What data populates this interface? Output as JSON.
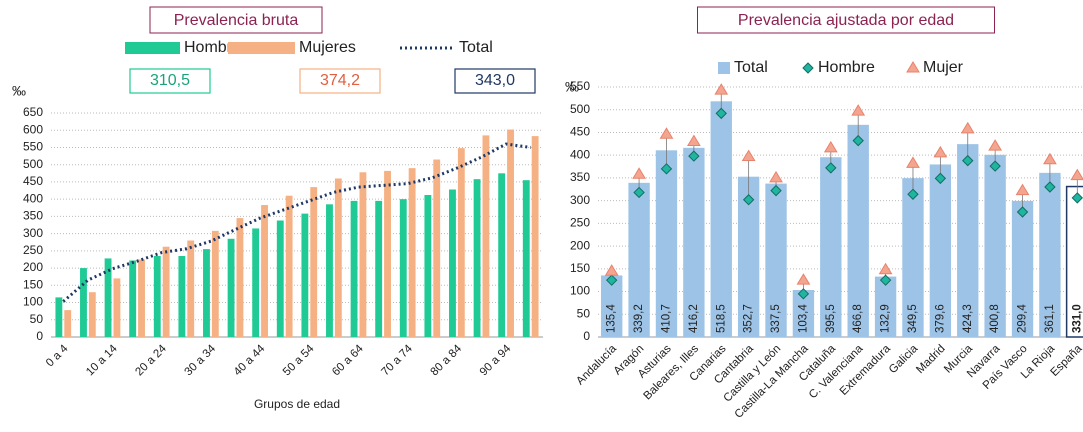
{
  "chart_data": [
    {
      "type": "bar",
      "title": "Prevalencia bruta",
      "unit": "‰",
      "xlabel": "Grupos de edad",
      "categories": [
        "0 a 4",
        null,
        "10 a 14",
        null,
        "20 a 24",
        null,
        "30 a 34",
        null,
        "40 a 44",
        null,
        "50 a 54",
        null,
        "60 a 64",
        null,
        "70 a 74",
        null,
        "80 a 84",
        null,
        "90 a 94",
        null
      ],
      "series": [
        {
          "name": "Hombres",
          "type": "bar",
          "color": "#1fca94",
          "summary": "310,5",
          "values": [
            115,
            200,
            228,
            222,
            235,
            235,
            255,
            285,
            315,
            338,
            358,
            385,
            395,
            395,
            400,
            412,
            428,
            458,
            475,
            455
          ]
        },
        {
          "name": "Mujeres",
          "type": "bar",
          "color": "#f5b183",
          "summary": "374,2",
          "values": [
            78,
            130,
            170,
            225,
            262,
            280,
            308,
            345,
            383,
            410,
            435,
            460,
            478,
            482,
            490,
            515,
            548,
            585,
            602,
            583
          ]
        },
        {
          "name": "Total",
          "type": "line",
          "color": "#1f3864",
          "summary": "343,0",
          "values": [
            103,
            165,
            198,
            220,
            245,
            256,
            278,
            312,
            345,
            370,
            395,
            420,
            435,
            440,
            445,
            462,
            490,
            522,
            560,
            550
          ]
        }
      ],
      "ylim": [
        0,
        650
      ],
      "yticks": [
        0,
        50,
        100,
        150,
        200,
        250,
        300,
        350,
        400,
        450,
        500,
        550,
        600,
        650
      ],
      "grid": true
    },
    {
      "type": "bar",
      "title": "Prevalencia ajustada por edad",
      "unit": "‰",
      "categories": [
        "Andalucía",
        "Aragón",
        "Asturias",
        "Baleares, Illes",
        "Canarias",
        "Cantabria",
        "Castilla y León",
        "Castilla-La Mancha",
        "Cataluña",
        "C. Valenciana",
        "Extremadura",
        "Galicia",
        "Madrid",
        "Murcia",
        "Navarra",
        "País Vasco",
        "La Rioja",
        "España"
      ],
      "series": [
        {
          "name": "Total",
          "type": "bar",
          "color": "#9dc3e6",
          "values": [
            135.4,
            339.2,
            410.7,
            416.2,
            518.5,
            352.7,
            337.5,
            103.4,
            395.5,
            466.8,
            132.9,
            349.5,
            379.6,
            424.3,
            400.8,
            299.4,
            361.1,
            331.0
          ],
          "value_labels": [
            "135,4",
            "339,2",
            "410,7",
            "416,2",
            "518,5",
            "352,7",
            "337,5",
            "103,4",
            "395,5",
            "466,8",
            "132,9",
            "349,5",
            "379,6",
            "424,3",
            "400,8",
            "299,4",
            "361,1",
            "331,0"
          ]
        },
        {
          "name": "Hombre",
          "type": "scatter",
          "marker": "diamond",
          "color": "#1fb5a0",
          "values": [
            125,
            318,
            370,
            398,
            492,
            302,
            322,
            95,
            372,
            432,
            125,
            314,
            349,
            388,
            376,
            275,
            330,
            306
          ]
        },
        {
          "name": "Mujer",
          "type": "scatter",
          "marker": "triangle",
          "color": "#f4a58f",
          "values": [
            145,
            358,
            446,
            430,
            543,
            397,
            350,
            125,
            416,
            497,
            148,
            382,
            405,
            458,
            420,
            322,
            390,
            355
          ]
        }
      ],
      "ylim": [
        0,
        550
      ],
      "yticks": [
        0,
        50,
        100,
        150,
        200,
        250,
        300,
        350,
        400,
        450,
        500,
        550
      ],
      "grid": true
    }
  ]
}
